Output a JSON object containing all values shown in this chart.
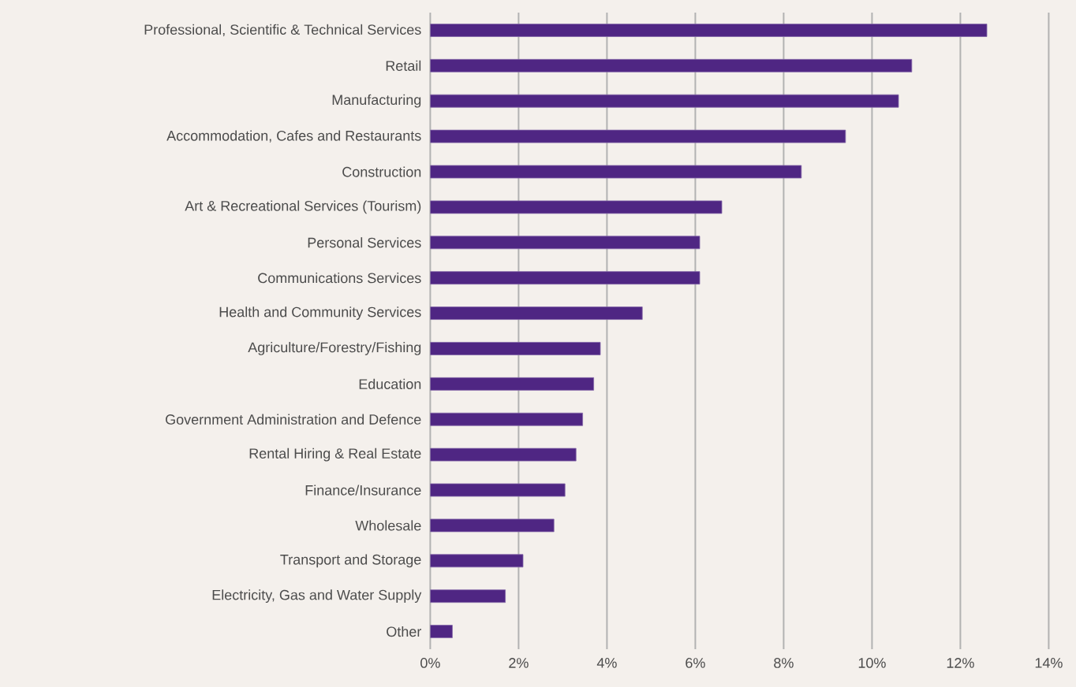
{
  "chart_data": {
    "type": "bar",
    "orientation": "horizontal",
    "categories": [
      "Professional, Scientific & Technical Services",
      "Retail",
      "Manufacturing",
      "Accommodation, Cafes and Restaurants",
      "Construction",
      "Art & Recreational Services (Tourism)",
      "Personal Services",
      "Communications Services",
      "Health and Community Services",
      "Agriculture/Forestry/Fishing",
      "Education",
      "Government Administration and Defence",
      "Rental Hiring & Real Estate",
      "Finance/Insurance",
      "Wholesale",
      "Transport and Storage",
      "Electricity, Gas and Water Supply",
      "Other"
    ],
    "values": [
      12.6,
      10.9,
      10.6,
      9.4,
      8.4,
      6.6,
      6.1,
      6.1,
      4.8,
      3.85,
      3.7,
      3.45,
      3.3,
      3.05,
      2.8,
      2.1,
      1.7,
      0.5
    ],
    "color": "#4f2683",
    "xlim": [
      0,
      14
    ],
    "xticks": [
      {
        "value": 0,
        "label": "0%"
      },
      {
        "value": 2,
        "label": "2%"
      },
      {
        "value": 4,
        "label": "4%"
      },
      {
        "value": 6,
        "label": "6%"
      },
      {
        "value": 8,
        "label": "8%"
      },
      {
        "value": 10,
        "label": "10%"
      },
      {
        "value": 12,
        "label": "12%"
      },
      {
        "value": 14,
        "label": "14%"
      }
    ],
    "grid": "x"
  }
}
